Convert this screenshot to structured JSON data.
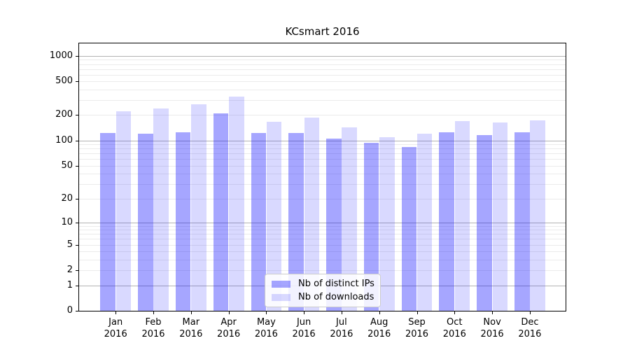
{
  "chart_data": {
    "type": "bar",
    "title": "KCsmart 2016",
    "xlabel": "",
    "ylabel": "",
    "categories": [
      "Jan 2016",
      "Feb 2016",
      "Mar 2016",
      "Apr 2016",
      "May 2016",
      "Jun 2016",
      "Jul 2016",
      "Aug 2016",
      "Sep 2016",
      "Oct 2016",
      "Nov 2016",
      "Dec 2016"
    ],
    "series": [
      {
        "id": "distinct-ips",
        "name": "Nb of distinct IPs",
        "color": "#0000ff",
        "alpha": 0.35,
        "values": [
          123,
          120,
          126,
          208,
          122,
          123,
          105,
          93,
          84,
          124,
          115,
          126
        ]
      },
      {
        "id": "downloads",
        "name": "Nb of downloads",
        "color": "#0000ff",
        "alpha": 0.15,
        "values": [
          222,
          238,
          270,
          328,
          167,
          188,
          142,
          110,
          120,
          169,
          162,
          172
        ]
      }
    ],
    "yscale": "log1p",
    "ylim": [
      0,
      1400
    ],
    "yticks": [
      1000,
      500,
      200,
      100,
      50,
      20,
      10,
      5,
      2,
      1,
      0
    ],
    "grid": {
      "major_lines": [
        1,
        10,
        100,
        1000
      ],
      "minor_subs": [
        2,
        3,
        4,
        5,
        6,
        7,
        8,
        9
      ],
      "major_color": "#b3b3b3",
      "minor_color": "#ebebeb"
    },
    "legend": {
      "position": "lower center"
    },
    "axis_color": "#000000",
    "background": "#ffffff"
  }
}
